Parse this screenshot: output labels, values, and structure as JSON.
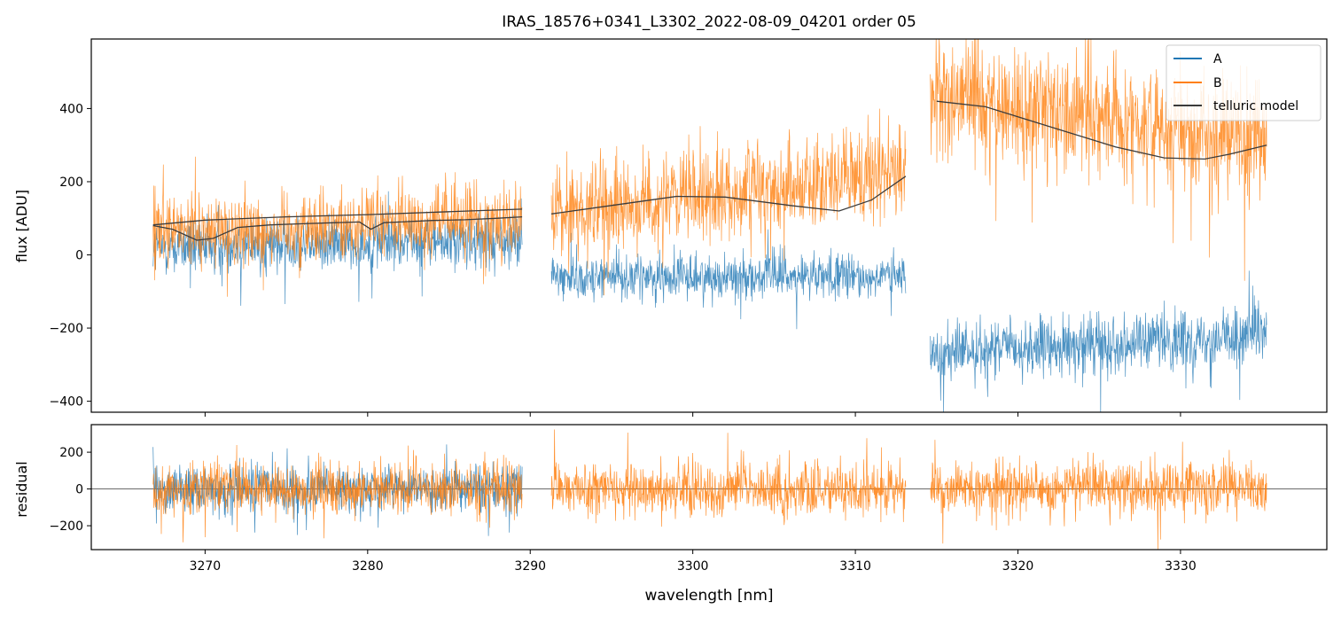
{
  "chart_data": [
    {
      "type": "line",
      "panel": "flux",
      "title": "IRAS_18576+0341_L3302_2022-08-09_04201  order 05",
      "xlabel": "",
      "ylabel": "flux [ADU]",
      "xlim": [
        3263.0,
        3339.0
      ],
      "ylim": [
        -430,
        590
      ],
      "xticks": [
        3270,
        3280,
        3290,
        3300,
        3310,
        3320,
        3330
      ],
      "yticks": [
        -400,
        -200,
        0,
        200,
        400
      ],
      "legend_position": "top-right",
      "segments": [
        {
          "x_start": 3266.8,
          "x_end": 3289.5
        },
        {
          "x_start": 3291.3,
          "x_end": 3313.1
        },
        {
          "x_start": 3314.6,
          "x_end": 3335.3
        }
      ],
      "series": [
        {
          "name": "A",
          "color": "#1f77b4",
          "style": "noisy-trace",
          "segment_levels": [
            [
              20,
              40
            ],
            [
              -60,
              -60
            ],
            [
              -270,
              -220
            ]
          ],
          "noise_amplitude": [
            70,
            55,
            70
          ]
        },
        {
          "name": "B",
          "color": "#ff7f0e",
          "style": "noisy-trace",
          "segment_levels": [
            [
              60,
              100
            ],
            [
              110,
              230
            ],
            [
              430,
              320
            ]
          ],
          "noise_amplitude": [
            90,
            110,
            150
          ]
        },
        {
          "name": "telluric model",
          "color": "#3b3b3b",
          "style": "model",
          "segments": [
            {
              "x": [
                3266.8,
                3270,
                3275,
                3280,
                3285,
                3289.5
              ],
              "y": [
                82,
                95,
                104,
                110,
                118,
                125
              ]
            },
            {
              "x": [
                3291.3,
                3295,
                3299,
                3302,
                3306,
                3309,
                3311,
                3313.1
              ],
              "y": [
                112,
                135,
                160,
                158,
                135,
                120,
                150,
                215
              ]
            },
            {
              "x": [
                3315.0,
                3318,
                3322,
                3326,
                3329,
                3331.5,
                3333,
                3335.3
              ],
              "y": [
                420,
                405,
                350,
                295,
                265,
                262,
                275,
                300
              ]
            }
          ],
          "lower_trace": {
            "x": [
              3266.8,
              3268,
              3269.5,
              3270.5,
              3272,
              3274,
              3276,
              3278,
              3279.5,
              3280.2,
              3281,
              3282,
              3284,
              3286,
              3288,
              3289.5
            ],
            "y": [
              80,
              70,
              40,
              45,
              75,
              82,
              85,
              88,
              90,
              70,
              88,
              90,
              94,
              96,
              100,
              104
            ]
          }
        }
      ]
    },
    {
      "type": "line",
      "panel": "residual",
      "xlabel": "wavelength [nm]",
      "ylabel": "residual",
      "xlim": [
        3263.0,
        3339.0
      ],
      "ylim": [
        -330,
        350
      ],
      "xticks": [
        3270,
        3280,
        3290,
        3300,
        3310,
        3320,
        3330
      ],
      "yticks": [
        -200,
        0,
        200
      ],
      "zero_line": true,
      "series": [
        {
          "name": "A",
          "color": "#1f77b4",
          "style": "noisy-trace",
          "x_range": [
            3266.8,
            3289.5
          ],
          "noise_amplitude": 120
        },
        {
          "name": "B",
          "color": "#ff7f0e",
          "style": "noisy-trace",
          "noise_amplitude": 130
        }
      ]
    }
  ],
  "legend": {
    "items": [
      {
        "label": "A",
        "color": "#1f77b4"
      },
      {
        "label": "B",
        "color": "#ff7f0e"
      },
      {
        "label": "telluric model",
        "color": "#3b3b3b"
      }
    ]
  }
}
